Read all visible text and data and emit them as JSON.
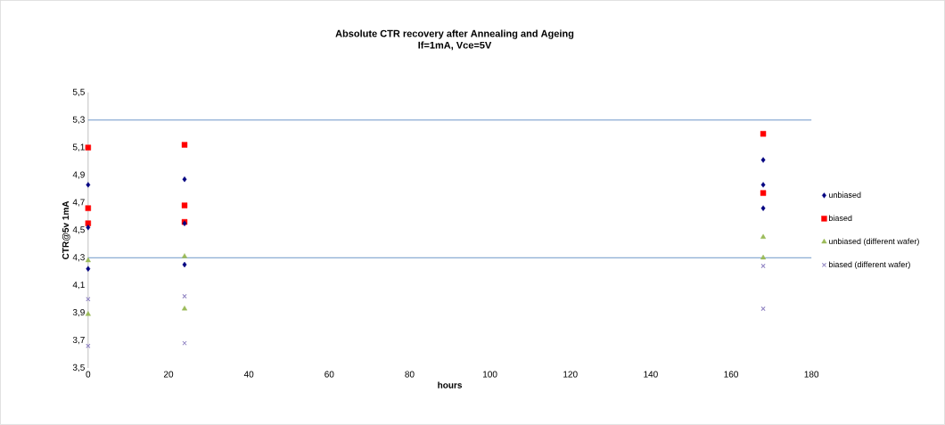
{
  "chart_data": {
    "type": "scatter",
    "title": "Absolute CTR recovery after Annealing and Ageing",
    "subtitle": "If=1mA, Vce=5V",
    "xlabel": "hours",
    "ylabel": "CTR@5v 1mA",
    "xlim": [
      0,
      180
    ],
    "xticks": [
      0,
      20,
      40,
      60,
      80,
      100,
      120,
      140,
      160,
      180
    ],
    "ylim": [
      3.5,
      5.5
    ],
    "yticks": [
      {
        "value": 3.5,
        "label": "3,5"
      },
      {
        "value": 3.7,
        "label": "3,7"
      },
      {
        "value": 3.9,
        "label": "3,9"
      },
      {
        "value": 4.1,
        "label": "4,1"
      },
      {
        "value": 4.3,
        "label": "4,3"
      },
      {
        "value": 4.5,
        "label": "4,5"
      },
      {
        "value": 4.7,
        "label": "4,7"
      },
      {
        "value": 4.9,
        "label": "4,9"
      },
      {
        "value": 5.1,
        "label": "5,1"
      },
      {
        "value": 5.3,
        "label": "5,3"
      },
      {
        "value": 5.5,
        "label": "5,5"
      }
    ],
    "grid": false,
    "legend": "right",
    "ref_lines": [
      {
        "axis": "y",
        "value": 5.3,
        "color": "#4a7ebb"
      },
      {
        "axis": "y",
        "value": 4.3,
        "color": "#4a7ebb"
      }
    ],
    "series": [
      {
        "name": "unbiased",
        "color": "#000080",
        "marker": "diamond",
        "x": [
          0,
          0,
          0,
          24,
          24,
          24,
          168,
          168,
          168
        ],
        "values": [
          4.83,
          4.52,
          4.22,
          4.87,
          4.55,
          4.25,
          5.01,
          4.83,
          4.66
        ]
      },
      {
        "name": "biased",
        "color": "#ff0000",
        "marker": "square",
        "x": [
          0,
          0,
          0,
          24,
          24,
          24,
          168,
          168
        ],
        "values": [
          5.1,
          4.66,
          4.55,
          5.12,
          4.68,
          4.56,
          5.2,
          4.77
        ]
      },
      {
        "name": "unbiased (different wafer)",
        "color": "#9bbb59",
        "marker": "triangle",
        "x": [
          0,
          0,
          24,
          24,
          168,
          168
        ],
        "values": [
          4.28,
          3.89,
          4.31,
          3.93,
          4.45,
          4.3
        ]
      },
      {
        "name": "biased (different wafer)",
        "color": "#8c7fc0",
        "marker": "cross",
        "x": [
          0,
          0,
          24,
          24,
          168,
          168
        ],
        "values": [
          4.0,
          3.66,
          4.02,
          3.68,
          4.24,
          3.93
        ]
      }
    ]
  }
}
